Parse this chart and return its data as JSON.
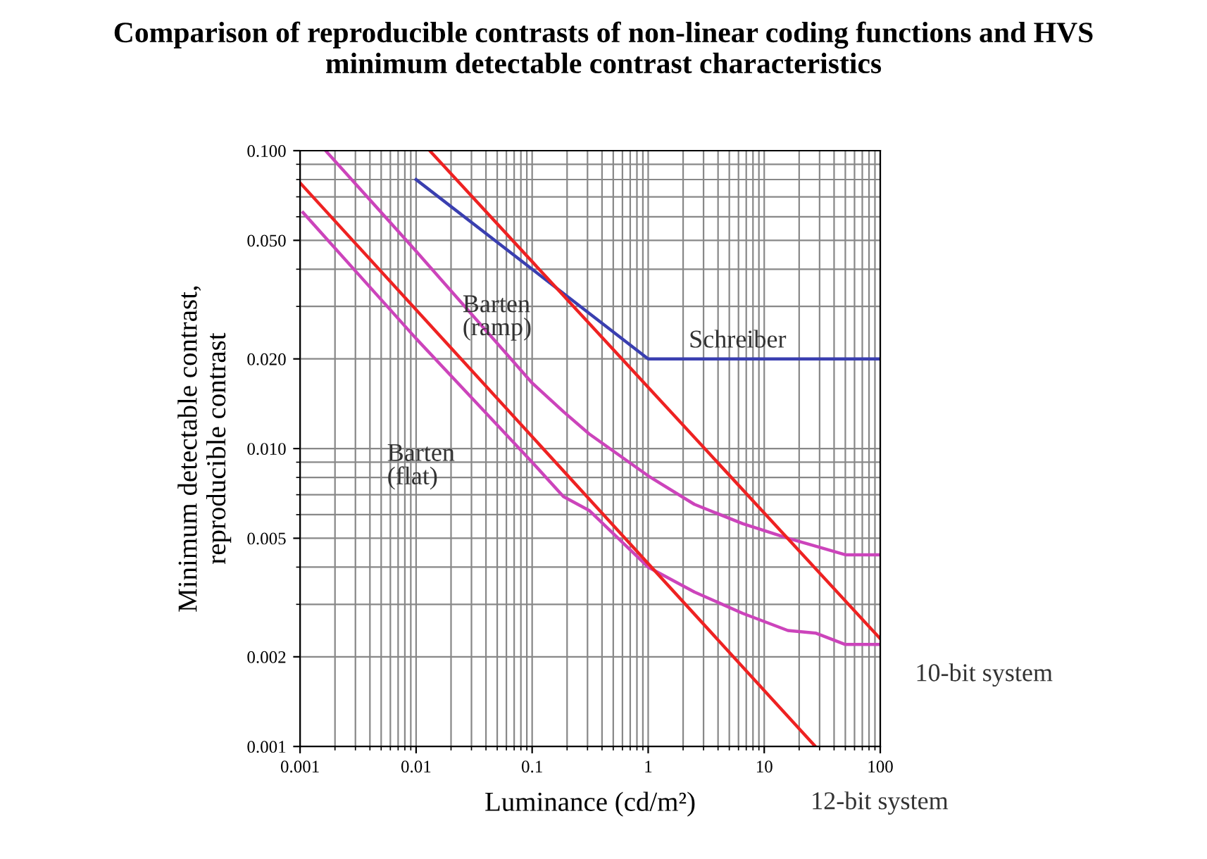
{
  "chart_data": {
    "type": "line",
    "title": "Comparison of reproducible contrasts of non-linear coding functions and HVS\nminimum detectable contrast characteristics",
    "xlabel": "Luminance (cd/m²)",
    "ylabel": "Minimum detectable contrast,\nreproducible contrast",
    "log": "xy",
    "xlim": [
      0.001,
      100
    ],
    "ylim": [
      0.001,
      0.1
    ],
    "xticks": [
      0.001,
      0.01,
      0.1,
      1,
      10,
      100
    ],
    "yticks": [
      0.001,
      0.002,
      0.005,
      {
        "value": 0.01,
        "label": "0.010"
      },
      {
        "value": 0.02,
        "label": "0.020"
      },
      {
        "value": 0.05,
        "label": "0.050"
      },
      {
        "value": 0.1,
        "label": "0.100"
      }
    ],
    "grid": true,
    "series": [
      {
        "name": "Schreiber",
        "color": "#3a3fb0",
        "x": [
          0.01,
          1,
          100
        ],
        "values": [
          0.08,
          0.02,
          0.02
        ]
      },
      {
        "name": "Barten\n(ramp)",
        "color": "#cc44bb",
        "x": [
          0.00166,
          0.01,
          0.1,
          0.186,
          0.31,
          1,
          2.5,
          6.5,
          16,
          28,
          50,
          100
        ],
        "values": [
          0.1,
          0.046,
          0.0166,
          0.0133,
          0.0112,
          0.0081,
          0.0065,
          0.0056,
          0.005,
          0.0047,
          0.0044,
          0.0044
        ]
      },
      {
        "name": "Barten\n(flat)",
        "color": "#cc44bb",
        "x": [
          0.00106,
          0.01,
          0.1,
          0.186,
          0.31,
          1,
          2.5,
          6.5,
          16,
          28,
          50,
          100
        ],
        "values": [
          0.062,
          0.0234,
          0.009,
          0.0069,
          0.0062,
          0.004,
          0.0033,
          0.0028,
          0.00245,
          0.0024,
          0.0022,
          0.0022
        ]
      },
      {
        "name": "10-bit system",
        "color": "#ee2222",
        "x": [
          0.0131,
          100
        ],
        "values": [
          0.1,
          0.0023
        ]
      },
      {
        "name": "12-bit system",
        "color": "#ee2222",
        "x": [
          0.001,
          27.6
        ],
        "values": [
          0.078,
          0.001
        ]
      }
    ]
  }
}
